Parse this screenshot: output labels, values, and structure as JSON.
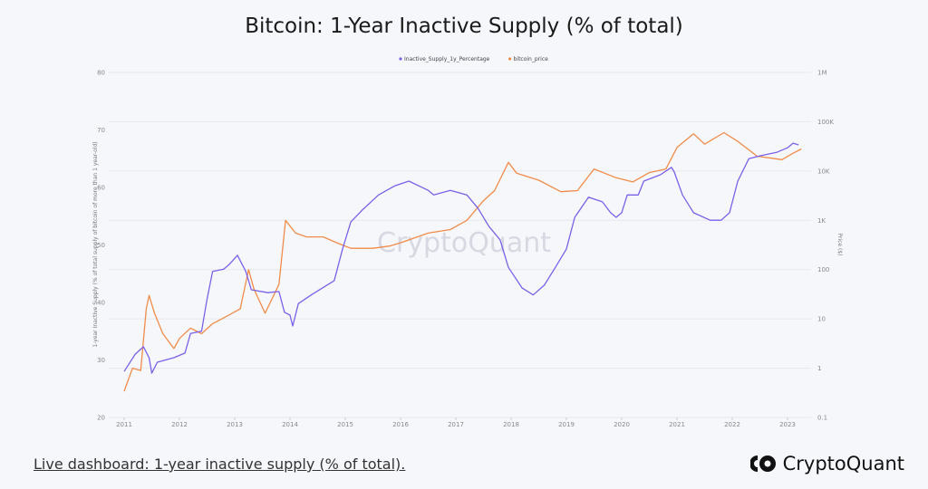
{
  "chart_data": {
    "type": "line",
    "title": "Bitcoin: 1-Year Inactive Supply (% of total)",
    "ylabel": "1-year Inactive Supply (% of total supply of bitcoin of more than 1 year-old)",
    "y2label": "Price ($)",
    "ylim": [
      20,
      80
    ],
    "y2lim": [
      0.1,
      1000000
    ],
    "y2scale": "log",
    "grid": true,
    "legend": "top-center",
    "x_ticks": [
      "2011",
      "2012",
      "2013",
      "2014",
      "2015",
      "2016",
      "2017",
      "2018",
      "2019",
      "2020",
      "2021",
      "2022",
      "2023"
    ],
    "y_ticks": [
      "20",
      "30",
      "40",
      "50",
      "60",
      "70",
      "80"
    ],
    "y2_ticks": [
      "0.1",
      "1",
      "10",
      "100",
      "1K",
      "10K",
      "100K",
      "1M"
    ],
    "watermark": "CryptoQuant",
    "series": [
      {
        "name": "Inactive_Supply_1y_Percentage",
        "color": "#7b61e8",
        "axis": "left",
        "x": [
          2011.0,
          2011.2,
          2011.35,
          2011.45,
          2011.5,
          2011.6,
          2011.9,
          2012.1,
          2012.2,
          2012.4,
          2012.5,
          2012.6,
          2012.8,
          2012.9,
          2013.05,
          2013.2,
          2013.3,
          2013.6,
          2013.8,
          2013.9,
          2014.0,
          2014.05,
          2014.15,
          2014.4,
          2014.8,
          2014.95,
          2015.1,
          2015.3,
          2015.6,
          2015.9,
          2016.15,
          2016.5,
          2016.6,
          2016.9,
          2017.2,
          2017.4,
          2017.6,
          2017.8,
          2017.95,
          2018.2,
          2018.4,
          2018.6,
          2018.8,
          2019.0,
          2019.15,
          2019.4,
          2019.65,
          2019.8,
          2019.9,
          2020.0,
          2020.1,
          2020.3,
          2020.4,
          2020.7,
          2020.9,
          2020.95,
          2021.1,
          2021.3,
          2021.6,
          2021.8,
          2021.95,
          2022.1,
          2022.3,
          2022.5,
          2022.8,
          2023.0,
          2023.1,
          2023.2
        ],
        "y": [
          28,
          31,
          32.3,
          30.4,
          27.7,
          29.6,
          30.4,
          31.2,
          34.6,
          35,
          40.6,
          45.4,
          45.8,
          46.6,
          48.2,
          45.4,
          42.2,
          41.7,
          41.9,
          38.3,
          37.8,
          35.9,
          39.8,
          41.4,
          43.8,
          49.3,
          54,
          56,
          58.7,
          60.3,
          61.1,
          59.5,
          58.7,
          59.5,
          58.7,
          56.4,
          53.2,
          50.9,
          46.1,
          42.5,
          41.3,
          43,
          46.1,
          49.3,
          54.8,
          58.3,
          57.5,
          55.6,
          54.8,
          55.6,
          58.7,
          58.7,
          61.1,
          62.2,
          63.5,
          62.7,
          58.7,
          55.6,
          54.3,
          54.3,
          55.6,
          61.1,
          65,
          65.5,
          66.1,
          66.9,
          67.7,
          67.4
        ]
      },
      {
        "name": "bitcoin_price",
        "color": "#f08c4a",
        "axis": "right",
        "x": [
          2011.0,
          2011.15,
          2011.3,
          2011.4,
          2011.45,
          2011.55,
          2011.7,
          2011.9,
          2012.0,
          2012.2,
          2012.4,
          2012.6,
          2012.9,
          2013.1,
          2013.25,
          2013.35,
          2013.55,
          2013.8,
          2013.92,
          2014.1,
          2014.3,
          2014.6,
          2014.9,
          2015.1,
          2015.5,
          2015.8,
          2016.0,
          2016.5,
          2016.9,
          2017.2,
          2017.5,
          2017.7,
          2017.95,
          2018.1,
          2018.5,
          2018.9,
          2019.2,
          2019.5,
          2019.9,
          2020.2,
          2020.5,
          2020.8,
          2021.0,
          2021.3,
          2021.5,
          2021.85,
          2022.1,
          2022.45,
          2022.9,
          2023.1,
          2023.25
        ],
        "y": [
          0.34,
          1,
          0.9,
          16,
          30,
          13,
          5,
          2.5,
          4,
          6.5,
          5,
          8,
          12,
          16,
          100,
          40,
          13,
          50,
          1000,
          550,
          460,
          460,
          330,
          270,
          270,
          300,
          350,
          550,
          650,
          1000,
          2500,
          4000,
          15000,
          9000,
          6500,
          3800,
          4000,
          11000,
          7300,
          6000,
          9300,
          11000,
          30000,
          57000,
          35000,
          60000,
          40000,
          20000,
          17000,
          23000,
          28000
        ]
      }
    ]
  },
  "footer": {
    "link": "Live dashboard: 1-year inactive supply (% of total).",
    "brand": "CryptoQuant"
  }
}
